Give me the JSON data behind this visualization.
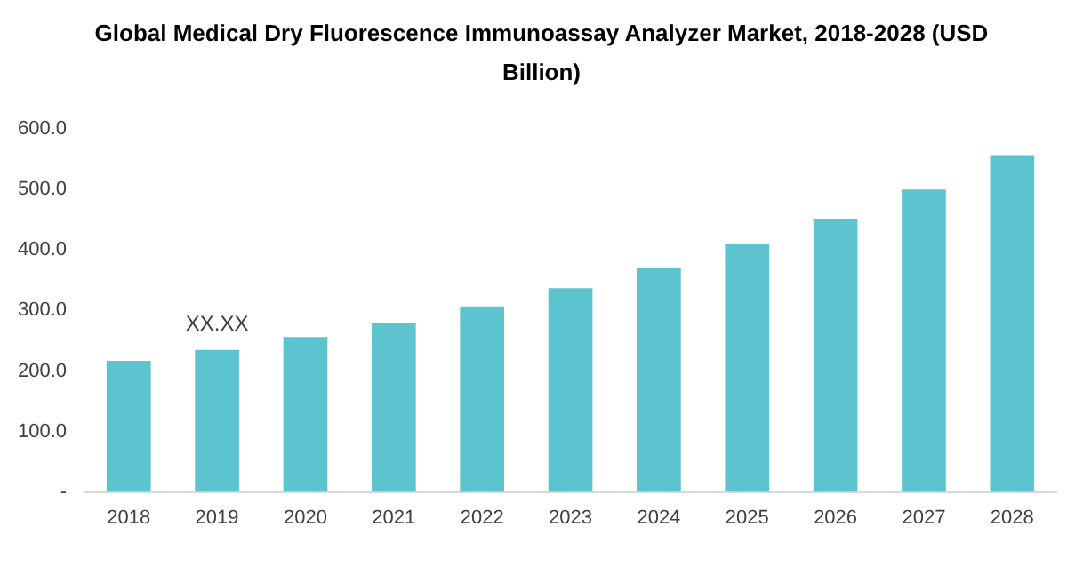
{
  "chart_data": {
    "type": "bar",
    "title": "Global Medical Dry Fluorescence Immunoassay Analyzer Market, 2018-2028 (USD Billion)",
    "categories": [
      "2018",
      "2019",
      "2020",
      "2021",
      "2022",
      "2023",
      "2024",
      "2025",
      "2026",
      "2027",
      "2028"
    ],
    "values": [
      217,
      235,
      256,
      280,
      307,
      337,
      370,
      410,
      452,
      500,
      557
    ],
    "color": "#5bc4cf",
    "ylim": [
      0,
      600
    ],
    "yticks": [
      {
        "value": 0,
        "label": "-"
      },
      {
        "value": 100,
        "label": "100.0"
      },
      {
        "value": 200,
        "label": "200.0"
      },
      {
        "value": 300,
        "label": "300.0"
      },
      {
        "value": 400,
        "label": "400.0"
      },
      {
        "value": 500,
        "label": "500.0"
      },
      {
        "value": 600,
        "label": "600.0"
      }
    ],
    "grid": false,
    "legend": false,
    "annotations": [
      "XX.XX"
    ]
  }
}
